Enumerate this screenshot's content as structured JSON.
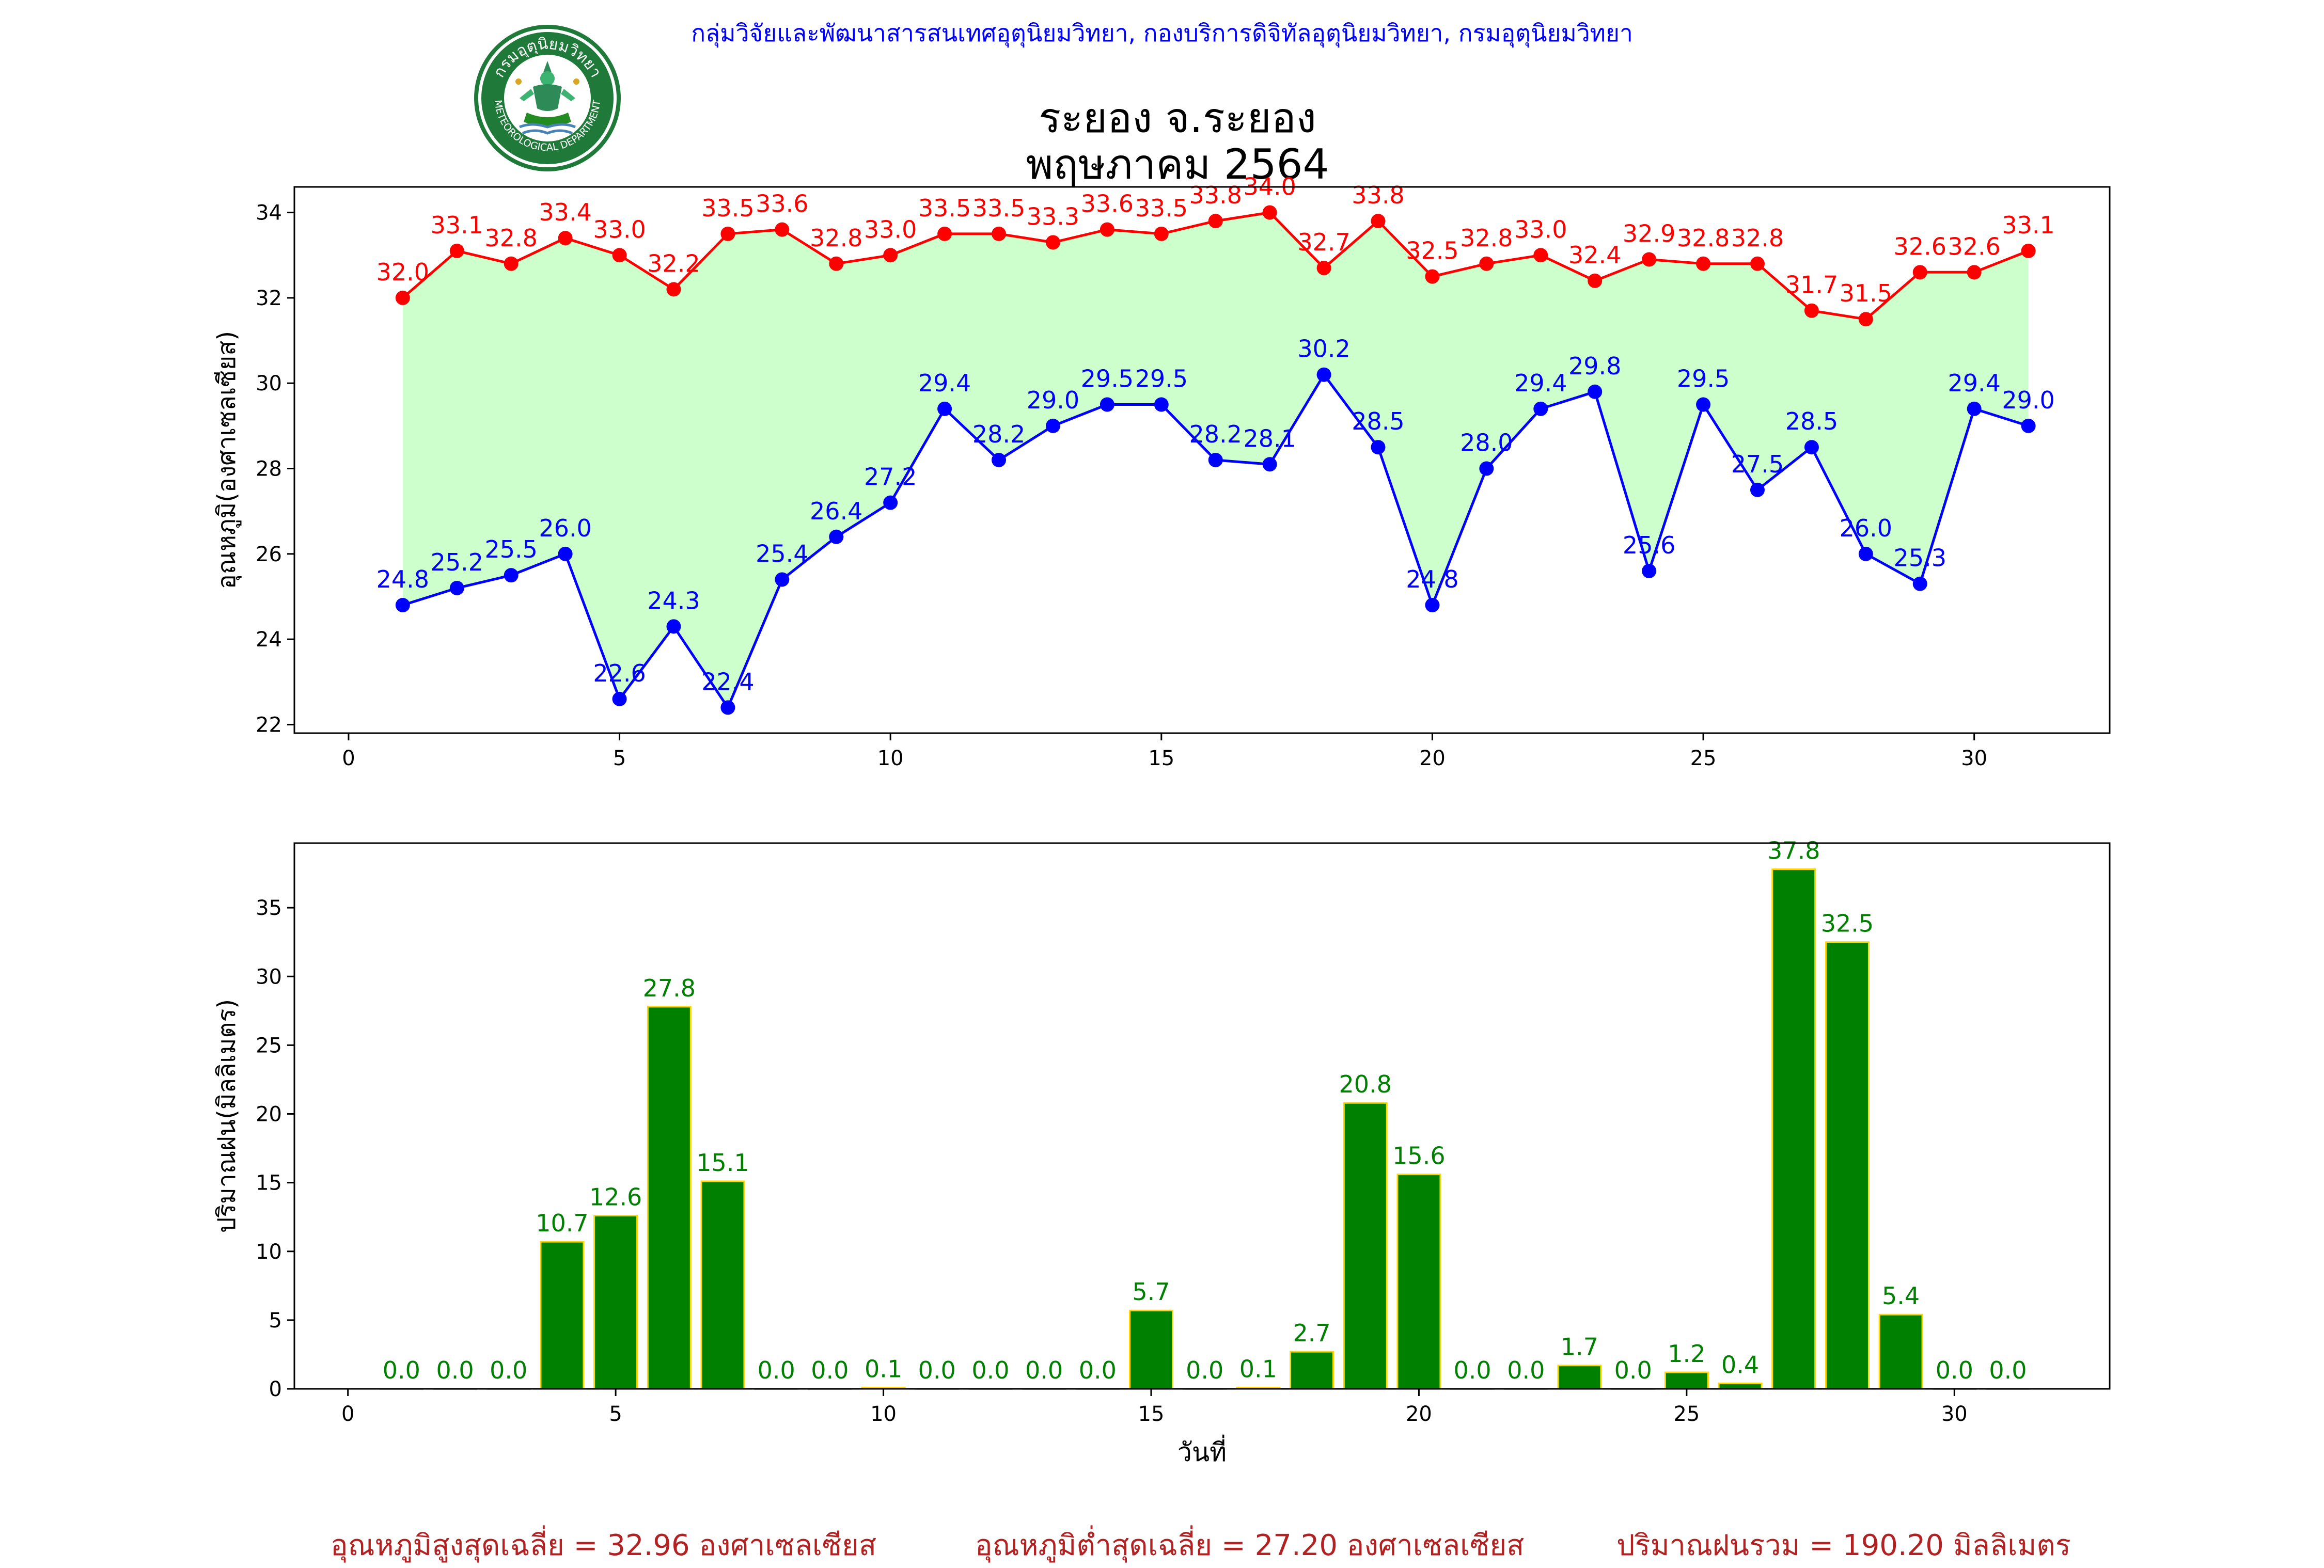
{
  "header": {
    "credit": "กลุ่มวิจัยและพัฒนาสารสนเทศอุตุนิยมวิทยา, กองบริการดิจิทัลอุตุนิยมวิทยา, กรมอุตุนิยมวิทยา",
    "logo_text": "กรมอุตุนิยมวิทยา",
    "logo_text_en": "METEOROLOGICAL DEPARTMENT"
  },
  "title": {
    "line1": "ระยอง จ.ระยอง",
    "line2": "พฤษภาคม 2564"
  },
  "chart_data": [
    {
      "type": "line",
      "x": [
        1,
        2,
        3,
        4,
        5,
        6,
        7,
        8,
        9,
        10,
        11,
        12,
        13,
        14,
        15,
        16,
        17,
        18,
        19,
        20,
        21,
        22,
        23,
        24,
        25,
        26,
        27,
        28,
        29,
        30,
        31
      ],
      "series": [
        {
          "values": [
            32.0,
            33.1,
            32.8,
            33.4,
            33.0,
            32.2,
            33.5,
            33.6,
            32.8,
            33.0,
            33.5,
            33.5,
            33.3,
            33.6,
            33.5,
            33.8,
            34.0,
            32.7,
            33.8,
            32.5,
            32.8,
            33.0,
            32.4,
            32.9,
            32.8,
            32.8,
            31.7,
            31.5,
            32.6,
            32.6,
            33.1
          ],
          "color": "#ff0000"
        },
        {
          "values": [
            24.8,
            25.2,
            25.5,
            26.0,
            22.6,
            24.3,
            22.4,
            25.4,
            26.4,
            27.2,
            29.4,
            28.2,
            29.0,
            29.5,
            29.5,
            28.2,
            28.1,
            30.2,
            28.5,
            24.8,
            28.0,
            29.4,
            29.8,
            25.6,
            29.5,
            27.5,
            28.5,
            26.0,
            25.3,
            29.4,
            29.0
          ],
          "color": "#0000ff"
        }
      ],
      "fill_between_color": "#ccffcc",
      "xlabel": "",
      "ylabel": "อุณหภูมิ(องศาเซลเซียส)",
      "xlim": [
        -1,
        32.5
      ],
      "ylim": [
        21.8,
        34.6
      ],
      "xticks": [
        0,
        5,
        10,
        15,
        20,
        25,
        30
      ],
      "yticks": [
        22,
        24,
        26,
        28,
        30,
        32,
        34
      ],
      "grid": false
    },
    {
      "type": "bar",
      "categories": [
        1,
        2,
        3,
        4,
        5,
        6,
        7,
        8,
        9,
        10,
        11,
        12,
        13,
        14,
        15,
        16,
        17,
        18,
        19,
        20,
        21,
        22,
        23,
        24,
        25,
        26,
        27,
        28,
        29,
        30,
        31
      ],
      "values": [
        0.0,
        0.0,
        0.0,
        10.7,
        12.6,
        27.8,
        15.1,
        0.0,
        0.0,
        0.1,
        0.0,
        0.0,
        0.0,
        0.0,
        5.7,
        0.0,
        0.1,
        2.7,
        20.8,
        15.6,
        0.0,
        0.0,
        1.7,
        0.0,
        1.2,
        0.4,
        37.8,
        32.5,
        5.4,
        0.0,
        0.0
      ],
      "bar_color": "#008000",
      "edge_color": "#ffd700",
      "label_color": "#008000",
      "xlabel": "วันที่",
      "ylabel": "ปริมาณฝน(มิลลิเมตร)",
      "xlim": [
        -1,
        32.9
      ],
      "ylim": [
        0,
        39.7
      ],
      "xticks": [
        0,
        5,
        10,
        15,
        20,
        25,
        30
      ],
      "yticks": [
        0,
        5,
        10,
        15,
        20,
        25,
        30,
        35
      ],
      "grid": false
    }
  ],
  "summary": {
    "max_temp": "อุณหภูมิสูงสุดเฉลี่ย = 32.96 องศาเซลเซียส",
    "min_temp": "อุณหภูมิต่ำสุดเฉลี่ย = 27.20 องศาเซลเซียส",
    "rain_total": "ปริมาณฝนรวม = 190.20 มิลลิเมตร"
  }
}
